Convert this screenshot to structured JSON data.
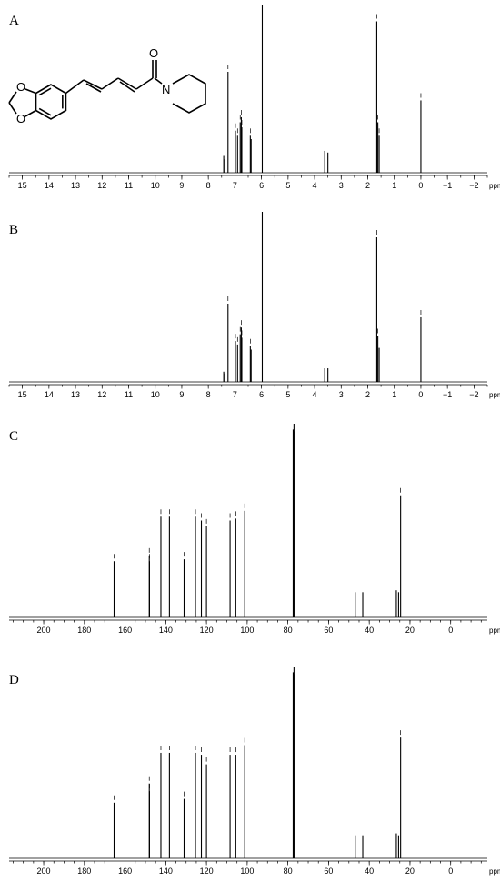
{
  "chart_data": [
    {
      "type": "bar",
      "panel_label": "A",
      "xlabel": "ppm",
      "xlim": [
        15.5,
        -2.5
      ],
      "x_reversed": true,
      "tick_values": [
        15,
        14,
        13,
        12,
        11,
        10,
        9,
        8,
        7,
        6,
        5,
        4,
        3,
        2,
        1,
        0,
        -1,
        -2
      ],
      "tick_labels": [
        "15",
        "14",
        "13",
        "12",
        "11",
        "10",
        "9",
        "8",
        "7",
        "6",
        "5",
        "4",
        "3",
        "2",
        "1",
        "0",
        "−1",
        "−2"
      ],
      "peaks": [
        {
          "x": 7.42,
          "h": 0.1
        },
        {
          "x": 7.38,
          "h": 0.08
        },
        {
          "x": 7.26,
          "h": 0.6
        },
        {
          "x": 6.98,
          "h": 0.25
        },
        {
          "x": 6.9,
          "h": 0.22
        },
        {
          "x": 6.8,
          "h": 0.3
        },
        {
          "x": 6.76,
          "h": 0.33
        },
        {
          "x": 6.74,
          "h": 0.27
        },
        {
          "x": 6.42,
          "h": 0.22
        },
        {
          "x": 6.39,
          "h": 0.2
        },
        {
          "x": 5.97,
          "h": 1.0
        },
        {
          "x": 3.62,
          "h": 0.13
        },
        {
          "x": 3.5,
          "h": 0.12
        },
        {
          "x": 1.66,
          "h": 0.9
        },
        {
          "x": 1.62,
          "h": 0.3
        },
        {
          "x": 1.57,
          "h": 0.22
        },
        {
          "x": 0.0,
          "h": 0.43
        }
      ],
      "has_structure": true,
      "structure_atoms": {
        "o_top": "O",
        "o_bottom": "O",
        "o_carbonyl": "O",
        "n": "N"
      }
    },
    {
      "type": "bar",
      "panel_label": "B",
      "xlabel": "ppm",
      "xlim": [
        15.5,
        -2.5
      ],
      "x_reversed": true,
      "tick_values": [
        15,
        14,
        13,
        12,
        11,
        10,
        9,
        8,
        7,
        6,
        5,
        4,
        3,
        2,
        1,
        0,
        -1,
        -2
      ],
      "tick_labels": [
        "15",
        "14",
        "13",
        "12",
        "11",
        "10",
        "9",
        "8",
        "7",
        "6",
        "5",
        "4",
        "3",
        "2",
        "1",
        "0",
        "−1",
        "−2"
      ],
      "peaks": [
        {
          "x": 7.42,
          "h": 0.06
        },
        {
          "x": 7.38,
          "h": 0.05
        },
        {
          "x": 7.26,
          "h": 0.46
        },
        {
          "x": 6.98,
          "h": 0.24
        },
        {
          "x": 6.9,
          "h": 0.22
        },
        {
          "x": 6.8,
          "h": 0.28
        },
        {
          "x": 6.76,
          "h": 0.32
        },
        {
          "x": 6.74,
          "h": 0.26
        },
        {
          "x": 6.42,
          "h": 0.21
        },
        {
          "x": 6.39,
          "h": 0.19
        },
        {
          "x": 5.97,
          "h": 1.0
        },
        {
          "x": 3.62,
          "h": 0.08
        },
        {
          "x": 3.5,
          "h": 0.08
        },
        {
          "x": 1.66,
          "h": 0.85
        },
        {
          "x": 1.62,
          "h": 0.27
        },
        {
          "x": 1.57,
          "h": 0.2
        },
        {
          "x": 0.0,
          "h": 0.38
        }
      ]
    },
    {
      "type": "bar",
      "panel_label": "C",
      "xlabel": "ppm",
      "xlim": [
        217,
        -18
      ],
      "x_reversed": true,
      "tick_values": [
        200,
        180,
        160,
        140,
        120,
        100,
        80,
        60,
        40,
        20,
        0
      ],
      "tick_labels": [
        "200",
        "180",
        "160",
        "140",
        "120",
        "100",
        "80",
        "60",
        "40",
        "20",
        "0"
      ],
      "peaks": [
        {
          "x": 165.4,
          "h": 0.29
        },
        {
          "x": 148.1,
          "h": 0.32
        },
        {
          "x": 148.0,
          "h": 0.29
        },
        {
          "x": 142.4,
          "h": 0.52
        },
        {
          "x": 138.2,
          "h": 0.52
        },
        {
          "x": 131.0,
          "h": 0.3
        },
        {
          "x": 125.4,
          "h": 0.52
        },
        {
          "x": 122.5,
          "h": 0.5
        },
        {
          "x": 120.0,
          "h": 0.47
        },
        {
          "x": 108.4,
          "h": 0.5
        },
        {
          "x": 105.6,
          "h": 0.51
        },
        {
          "x": 101.2,
          "h": 0.55
        },
        {
          "x": 77.4,
          "h": 0.97
        },
        {
          "x": 77.0,
          "h": 1.0
        },
        {
          "x": 76.6,
          "h": 0.96
        },
        {
          "x": 46.9,
          "h": 0.13
        },
        {
          "x": 43.2,
          "h": 0.13
        },
        {
          "x": 26.7,
          "h": 0.14
        },
        {
          "x": 25.6,
          "h": 0.13
        },
        {
          "x": 24.6,
          "h": 0.63
        }
      ]
    },
    {
      "type": "bar",
      "panel_label": "D",
      "xlabel": "ppm",
      "xlim": [
        217,
        -18
      ],
      "x_reversed": true,
      "tick_values": [
        200,
        180,
        160,
        140,
        120,
        100,
        80,
        60,
        40,
        20,
        0
      ],
      "tick_labels": [
        "200",
        "180",
        "160",
        "140",
        "120",
        "100",
        "80",
        "60",
        "40",
        "20",
        "0"
      ],
      "peaks": [
        {
          "x": 165.4,
          "h": 0.29
        },
        {
          "x": 148.1,
          "h": 0.39
        },
        {
          "x": 148.0,
          "h": 0.35
        },
        {
          "x": 142.4,
          "h": 0.55
        },
        {
          "x": 138.2,
          "h": 0.55
        },
        {
          "x": 131.0,
          "h": 0.31
        },
        {
          "x": 125.4,
          "h": 0.55
        },
        {
          "x": 122.5,
          "h": 0.54
        },
        {
          "x": 120.0,
          "h": 0.49
        },
        {
          "x": 108.4,
          "h": 0.54
        },
        {
          "x": 105.6,
          "h": 0.54
        },
        {
          "x": 101.2,
          "h": 0.59
        },
        {
          "x": 77.4,
          "h": 0.97
        },
        {
          "x": 77.0,
          "h": 1.0
        },
        {
          "x": 76.6,
          "h": 0.96
        },
        {
          "x": 46.9,
          "h": 0.12
        },
        {
          "x": 43.2,
          "h": 0.12
        },
        {
          "x": 26.7,
          "h": 0.13
        },
        {
          "x": 25.6,
          "h": 0.12
        },
        {
          "x": 24.6,
          "h": 0.63
        }
      ]
    }
  ]
}
